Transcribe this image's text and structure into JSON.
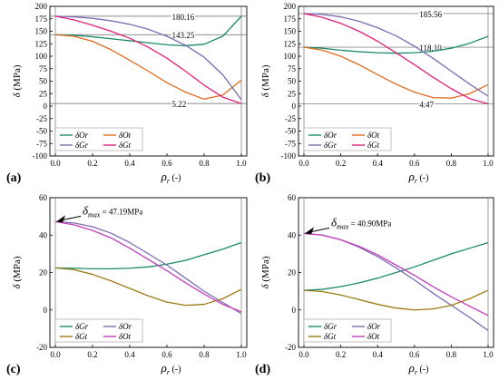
{
  "chart_data": [
    {
      "type": "line",
      "panel_label": "(a)",
      "ylabel": "δ (MPa)",
      "xlabel": "ρr (-)",
      "xlim": [
        0,
        1
      ],
      "ylim": [
        -100,
        200
      ],
      "xticks": [
        "0.0",
        "0.2",
        "0.4",
        "0.6",
        "0.8",
        "1.0"
      ],
      "yticks": [
        "-100",
        "-75",
        "-50",
        "-25",
        "0",
        "25",
        "50",
        "75",
        "100",
        "125",
        "150",
        "175",
        "200"
      ],
      "legend_position": "bottom-left",
      "reference_lines": [
        {
          "y": 180.16,
          "label": "180.16"
        },
        {
          "y": 143.25,
          "label": "143.25"
        },
        {
          "y": 5.22,
          "label": "5.22"
        }
      ],
      "series": [
        {
          "name": "δOr",
          "color": "#1b8a6b",
          "x": [
            0,
            0.1,
            0.2,
            0.3,
            0.4,
            0.5,
            0.6,
            0.7,
            0.8,
            0.9,
            1.0
          ],
          "y": [
            143.25,
            142,
            139,
            135,
            131,
            127,
            123,
            121,
            124,
            140,
            180
          ]
        },
        {
          "name": "δOt",
          "color": "#e06a1e",
          "x": [
            0,
            0.1,
            0.2,
            0.3,
            0.4,
            0.5,
            0.6,
            0.7,
            0.8,
            0.9,
            1.0
          ],
          "y": [
            143.25,
            140,
            130,
            113,
            92,
            70,
            47,
            28,
            14,
            22,
            52
          ]
        },
        {
          "name": "δGr",
          "color": "#7b6cb3",
          "x": [
            0,
            0.1,
            0.2,
            0.3,
            0.4,
            0.5,
            0.6,
            0.7,
            0.8,
            0.9,
            1.0
          ],
          "y": [
            180.16,
            179,
            176,
            171,
            164,
            154,
            140,
            122,
            98,
            63,
            13
          ]
        },
        {
          "name": "δGt",
          "color": "#e0207c",
          "x": [
            0,
            0.1,
            0.2,
            0.3,
            0.4,
            0.5,
            0.6,
            0.7,
            0.8,
            0.9,
            1.0
          ],
          "y": [
            180.16,
            173,
            162,
            150,
            136,
            118,
            96,
            70,
            42,
            18,
            5
          ]
        }
      ]
    },
    {
      "type": "line",
      "panel_label": "(b)",
      "ylabel": "δ (MPa)",
      "xlabel": "ρr (-)",
      "xlim": [
        0,
        1
      ],
      "ylim": [
        -100,
        200
      ],
      "xticks": [
        "0.0",
        "0.2",
        "0.4",
        "0.6",
        "0.8",
        "1.0"
      ],
      "yticks": [
        "-100",
        "-75",
        "-50",
        "-25",
        "0",
        "25",
        "50",
        "75",
        "100",
        "125",
        "150",
        "175",
        "200"
      ],
      "legend_position": "bottom-left",
      "reference_lines": [
        {
          "y": 185.56,
          "label": "185.56"
        },
        {
          "y": 118.1,
          "label": "118.10"
        },
        {
          "y": 4.47,
          "label": "4.47"
        }
      ],
      "series": [
        {
          "name": "δOr",
          "color": "#1b8a6b",
          "x": [
            0,
            0.1,
            0.2,
            0.3,
            0.4,
            0.5,
            0.6,
            0.7,
            0.8,
            0.9,
            1.0
          ],
          "y": [
            118.1,
            116,
            112,
            109,
            107,
            106,
            107,
            110,
            116,
            126,
            140
          ]
        },
        {
          "name": "δOt",
          "color": "#e06a1e",
          "x": [
            0,
            0.1,
            0.2,
            0.3,
            0.4,
            0.5,
            0.6,
            0.7,
            0.8,
            0.9,
            1.0
          ],
          "y": [
            118.1,
            112,
            100,
            83,
            63,
            44,
            28,
            17,
            16,
            25,
            43
          ]
        },
        {
          "name": "δGr",
          "color": "#7b6cb3",
          "x": [
            0,
            0.1,
            0.2,
            0.3,
            0.4,
            0.5,
            0.6,
            0.7,
            0.8,
            0.9,
            1.0
          ],
          "y": [
            185.56,
            184,
            179,
            170,
            157,
            141,
            120,
            96,
            70,
            44,
            20
          ]
        },
        {
          "name": "δGt",
          "color": "#e0207c",
          "x": [
            0,
            0.1,
            0.2,
            0.3,
            0.4,
            0.5,
            0.6,
            0.7,
            0.8,
            0.9,
            1.0
          ],
          "y": [
            185.56,
            178,
            166,
            150,
            130,
            107,
            83,
            58,
            35,
            15,
            4.47
          ]
        }
      ]
    },
    {
      "type": "line",
      "panel_label": "(c)",
      "ylabel": "δ (MPa)",
      "xlabel": "ρr (-)",
      "xlim": [
        0,
        1
      ],
      "ylim": [
        -20,
        60
      ],
      "xticks": [
        "0.0",
        "0.2",
        "0.4",
        "0.6",
        "0.8",
        "1.0"
      ],
      "yticks": [
        "-20",
        "0",
        "20",
        "40",
        "60"
      ],
      "legend_position": "bottom-left",
      "annotation": {
        "prefix": "δ",
        "subscript": "max",
        "text": " = 47.19MPa",
        "x": 0,
        "y": 47.19
      },
      "series": [
        {
          "name": "δGr",
          "color": "#1b8a6b",
          "x": [
            0,
            0.1,
            0.2,
            0.3,
            0.4,
            0.5,
            0.6,
            0.7,
            0.8,
            0.9,
            1.0
          ],
          "y": [
            22.5,
            22.3,
            22,
            22,
            22.3,
            23,
            24.5,
            26.5,
            29.5,
            32.5,
            36
          ]
        },
        {
          "name": "δOr",
          "color": "#7b6cb3",
          "x": [
            0,
            0.1,
            0.2,
            0.3,
            0.4,
            0.5,
            0.6,
            0.7,
            0.8,
            0.9,
            1.0
          ],
          "y": [
            47.19,
            46.5,
            44.5,
            41,
            36,
            30,
            24,
            17,
            10,
            4,
            -2
          ]
        },
        {
          "name": "δGt",
          "color": "#9c7a12",
          "x": [
            0,
            0.1,
            0.2,
            0.3,
            0.4,
            0.5,
            0.6,
            0.7,
            0.8,
            0.9,
            1.0
          ],
          "y": [
            22.5,
            21.5,
            19,
            15.5,
            11.5,
            7.5,
            4.2,
            2.5,
            3,
            6,
            11
          ]
        },
        {
          "name": "δOt",
          "color": "#c23fbc",
          "x": [
            0,
            0.1,
            0.2,
            0.3,
            0.4,
            0.5,
            0.6,
            0.7,
            0.8,
            0.9,
            1.0
          ],
          "y": [
            47.19,
            45.5,
            42.5,
            38.5,
            33,
            27,
            21,
            14.5,
            8.5,
            3,
            -1
          ]
        }
      ]
    },
    {
      "type": "line",
      "panel_label": "(d)",
      "ylabel": "δ (MPa)",
      "xlabel": "ρr (-)",
      "xlim": [
        0,
        1
      ],
      "ylim": [
        -20,
        60
      ],
      "xticks": [
        "0.0",
        "0.2",
        "0.4",
        "0.6",
        "0.8",
        "1.0"
      ],
      "yticks": [
        "-20",
        "0",
        "20",
        "40",
        "60"
      ],
      "legend_position": "bottom-left",
      "annotation": {
        "prefix": "δ",
        "subscript": "max",
        "text": " = 40.90MPa",
        "x": 0,
        "y": 40.9
      },
      "series": [
        {
          "name": "δGr",
          "color": "#1b8a6b",
          "x": [
            0,
            0.1,
            0.2,
            0.3,
            0.4,
            0.5,
            0.6,
            0.7,
            0.8,
            0.9,
            1.0
          ],
          "y": [
            10.5,
            11,
            12.5,
            14.5,
            17,
            20,
            23,
            26.5,
            30,
            33,
            36
          ]
        },
        {
          "name": "δOr",
          "color": "#7b6cb3",
          "x": [
            0,
            0.1,
            0.2,
            0.3,
            0.4,
            0.5,
            0.6,
            0.7,
            0.8,
            0.9,
            1.0
          ],
          "y": [
            40.9,
            40,
            37.5,
            33.5,
            28.5,
            22.5,
            16,
            9,
            2.5,
            -4,
            -11
          ]
        },
        {
          "name": "δGt",
          "color": "#9c7a12",
          "x": [
            0,
            0.1,
            0.2,
            0.3,
            0.4,
            0.5,
            0.6,
            0.7,
            0.8,
            0.9,
            1.0
          ],
          "y": [
            10.5,
            9.8,
            8,
            5.5,
            3,
            1,
            0,
            0.5,
            2.5,
            6,
            10.5
          ]
        },
        {
          "name": "δOt",
          "color": "#c23fbc",
          "x": [
            0,
            0.1,
            0.2,
            0.3,
            0.4,
            0.5,
            0.6,
            0.7,
            0.8,
            0.9,
            1.0
          ],
          "y": [
            40.9,
            40,
            37.5,
            34,
            29.5,
            24,
            18.5,
            12.5,
            7,
            2,
            -3
          ]
        }
      ]
    }
  ]
}
